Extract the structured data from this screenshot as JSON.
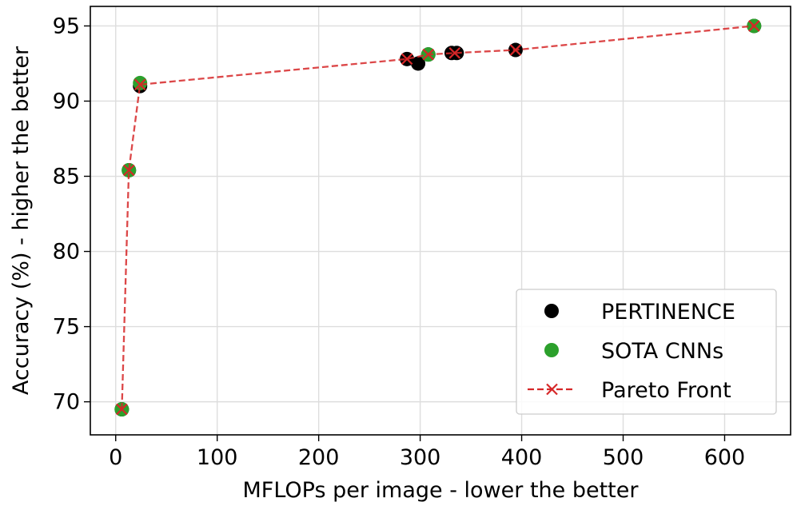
{
  "chart_data": {
    "type": "scatter",
    "xlabel": "MFLOPs per image - lower the better",
    "ylabel": "Accuracy (%) - higher the better",
    "xlim": [
      -25,
      665
    ],
    "ylim": [
      67.8,
      96.3
    ],
    "xticks": [
      0,
      100,
      200,
      300,
      400,
      500,
      600
    ],
    "yticks": [
      70,
      75,
      80,
      85,
      90,
      95
    ],
    "grid": true,
    "legend_position": "bottom-right",
    "series": [
      {
        "name": "PERTINENCE",
        "kind": "scatter",
        "color": "#000000",
        "points": [
          {
            "x": 6,
            "y": 69.5
          },
          {
            "x": 13,
            "y": 85.4
          },
          {
            "x": 24,
            "y": 91.0
          },
          {
            "x": 287,
            "y": 92.8
          },
          {
            "x": 298,
            "y": 92.5
          },
          {
            "x": 308,
            "y": 93.1
          },
          {
            "x": 331,
            "y": 93.2
          },
          {
            "x": 336,
            "y": 93.2
          },
          {
            "x": 394,
            "y": 93.4
          },
          {
            "x": 629,
            "y": 95.0
          }
        ]
      },
      {
        "name": "SOTA CNNs",
        "kind": "scatter",
        "color": "#2ca02c",
        "points": [
          {
            "x": 6,
            "y": 69.5
          },
          {
            "x": 13,
            "y": 85.4
          },
          {
            "x": 24,
            "y": 91.2
          },
          {
            "x": 308,
            "y": 93.1
          },
          {
            "x": 629,
            "y": 95.0
          }
        ]
      },
      {
        "name": "Pareto Front",
        "kind": "line",
        "color": "#d62728",
        "points": [
          {
            "x": 6,
            "y": 69.5
          },
          {
            "x": 13,
            "y": 85.4
          },
          {
            "x": 24,
            "y": 91.1
          },
          {
            "x": 287,
            "y": 92.8
          },
          {
            "x": 308,
            "y": 93.1
          },
          {
            "x": 334,
            "y": 93.2
          },
          {
            "x": 394,
            "y": 93.4
          },
          {
            "x": 629,
            "y": 95.0
          }
        ]
      }
    ]
  }
}
